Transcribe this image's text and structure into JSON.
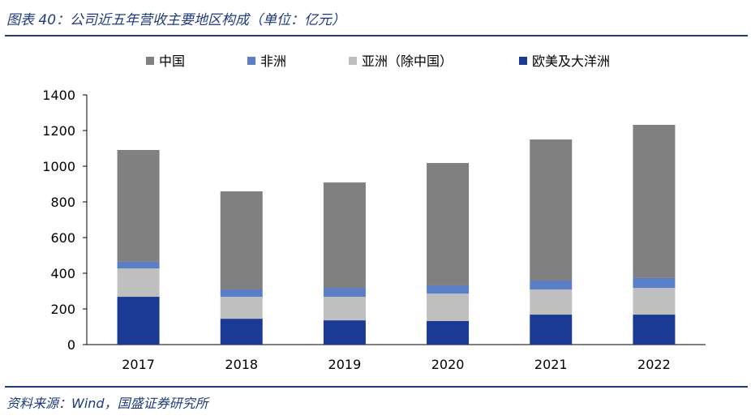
{
  "title": "图表 40：公司近五年营收主要地区构成（单位：亿元）",
  "source": "资料来源：Wind，国盛证券研究所",
  "chart_data": {
    "type": "bar",
    "stacked": true,
    "title": "图表 40：公司近五年营收主要地区构成（单位：亿元）",
    "xlabel": "",
    "ylabel": "",
    "ylim": [
      0,
      1400
    ],
    "yticks": [
      0,
      200,
      400,
      600,
      800,
      1000,
      1200,
      1400
    ],
    "categories": [
      "2017",
      "2018",
      "2019",
      "2020",
      "2021",
      "2022"
    ],
    "legend_position": "top",
    "series": [
      {
        "name": "欧美及大洋洲",
        "color": "#1a3a94",
        "values": [
          268,
          145,
          136,
          132,
          168,
          168
        ]
      },
      {
        "name": "亚洲（除中国）",
        "color": "#bfbfbf",
        "values": [
          159,
          123,
          132,
          154,
          141,
          150
        ]
      },
      {
        "name": "非洲",
        "color": "#5b7fc7",
        "values": [
          37,
          41,
          50,
          46,
          50,
          55
        ]
      },
      {
        "name": "中国",
        "color": "#808080",
        "values": [
          627,
          550,
          591,
          686,
          791,
          859
        ]
      }
    ],
    "legend_order": [
      "中国",
      "非洲",
      "亚洲（除中国）",
      "欧美及大洋洲"
    ]
  }
}
